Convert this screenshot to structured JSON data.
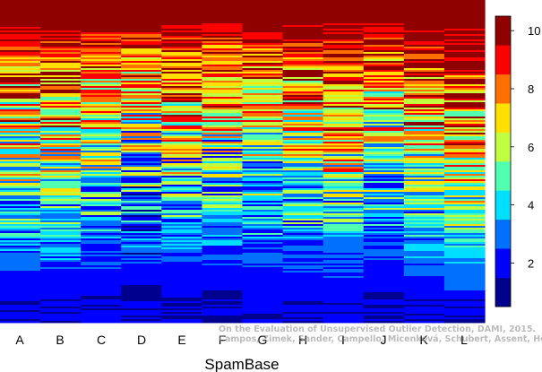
{
  "chart_data": {
    "type": "heatmap",
    "title": "",
    "xlabel": "SpamBase",
    "ylabel": "",
    "categories": [
      "A",
      "B",
      "C",
      "D",
      "E",
      "F",
      "G",
      "H",
      "I",
      "J",
      "K",
      "L"
    ],
    "colorbar": {
      "ticks": [
        2,
        4,
        6,
        8,
        10
      ],
      "range": [
        0.5,
        10.5
      ],
      "levels": 10,
      "colors": [
        "#00008f",
        "#0000ff",
        "#0070ff",
        "#00dfff",
        "#50ffaf",
        "#c0ff40",
        "#ffe000",
        "#ff7000",
        "#ff0000",
        "#8f0000"
      ]
    },
    "column_top_value": 10,
    "column_bottom_value": 1,
    "column_color_offsets": [
      0,
      0.2,
      -0.4,
      -0.9,
      -0.3,
      -0.7,
      -0.2,
      0.1,
      0.5,
      -0.6,
      0.4,
      1.3
    ]
  },
  "watermark": {
    "line1": "On the Evaluation of Unsupervised Outlier Detection, DAMI, 2015.",
    "line2": "Campos, Zimek, Sander, Campello, Micenková, Schubert, Assent, Houle"
  }
}
